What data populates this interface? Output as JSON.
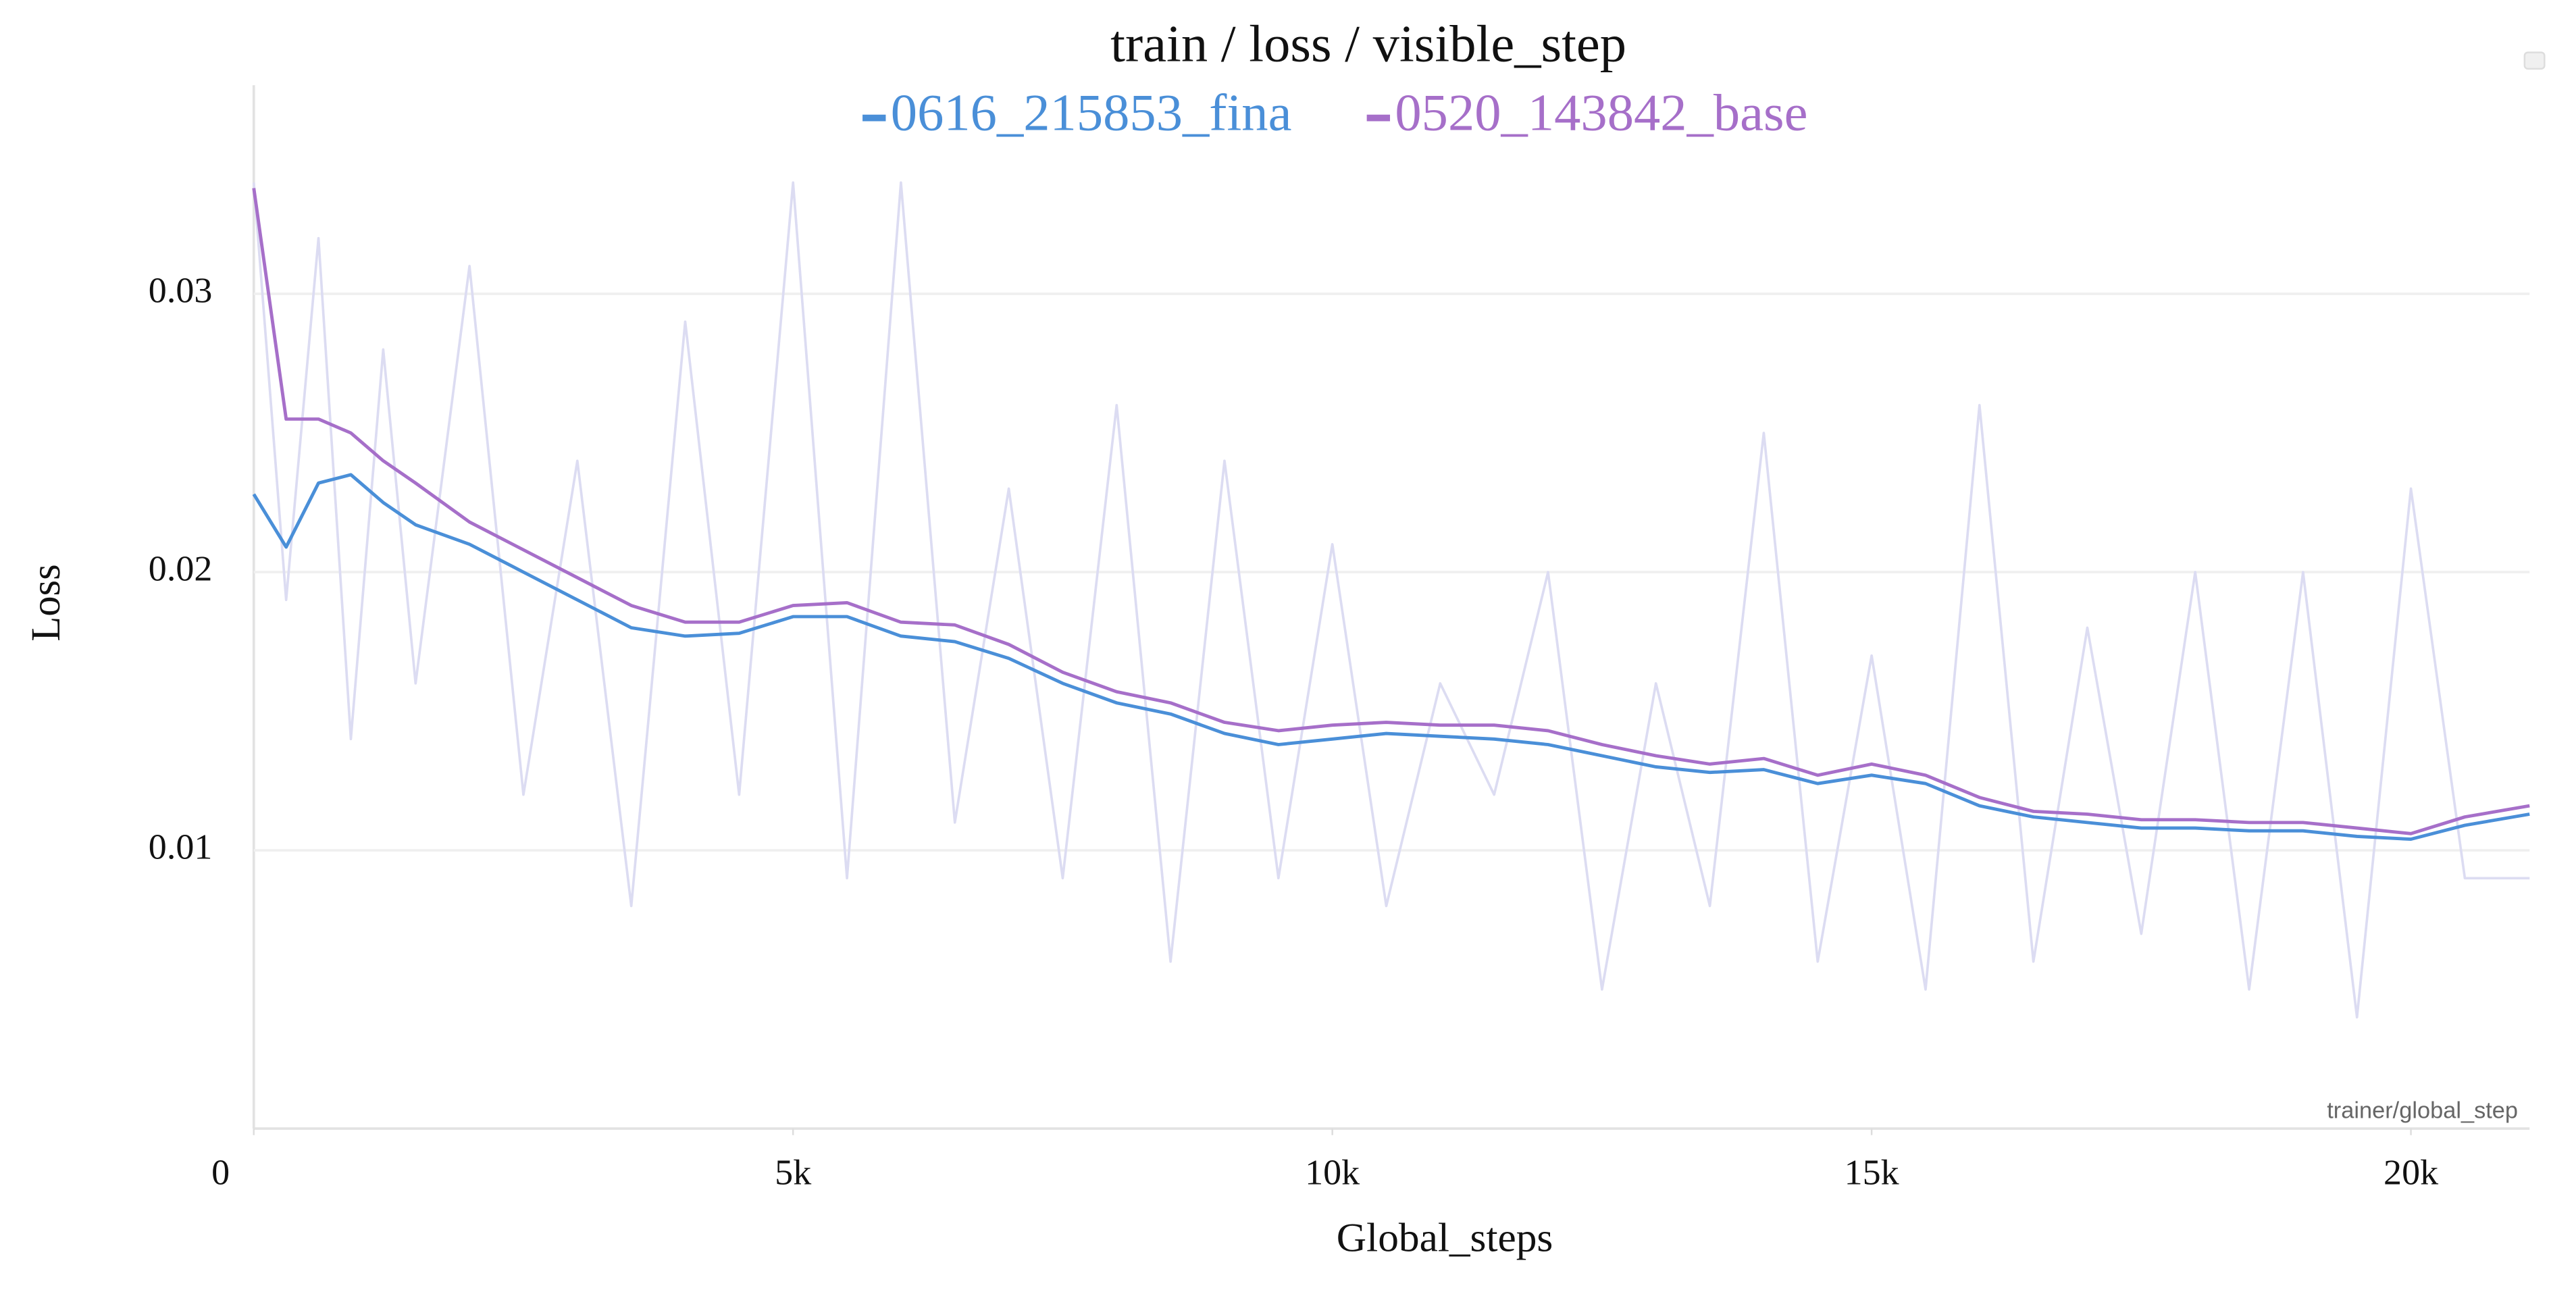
{
  "chart_data": {
    "type": "line",
    "title": "train / loss / visible_step",
    "x_label": "Global_steps",
    "y_label": "Loss",
    "x_axis_key": "trainer/global_step",
    "x": [
      0,
      300,
      600,
      900,
      1200,
      1500,
      2000,
      2500,
      3000,
      3500,
      4000,
      4500,
      5000,
      5500,
      6000,
      6500,
      7000,
      7500,
      8000,
      8500,
      9000,
      9500,
      10000,
      10500,
      11000,
      11500,
      12000,
      12500,
      13000,
      13500,
      14000,
      14500,
      15000,
      15500,
      16000,
      16500,
      17000,
      17500,
      18000,
      18500,
      19000,
      19500,
      20000,
      20500,
      21100
    ],
    "series": [
      {
        "color": "#dcdcf2",
        "values": [
          0.034,
          0.019,
          0.032,
          0.014,
          0.028,
          0.016,
          0.031,
          0.012,
          0.024,
          0.008,
          0.029,
          0.012,
          0.034,
          0.009,
          0.034,
          0.011,
          0.023,
          0.009,
          0.026,
          0.006,
          0.024,
          0.009,
          0.021,
          0.008,
          0.016,
          0.012,
          0.02,
          0.005,
          0.016,
          0.008,
          0.025,
          0.006,
          0.017,
          0.005,
          0.026,
          0.006,
          0.018,
          0.007,
          0.02,
          0.005,
          0.02,
          0.004,
          0.023,
          0.009,
          0.009
        ]
      },
      {
        "name": "0616_215853_fina",
        "color": "#4a8fd8",
        "values": [
          0.0228,
          0.0209,
          0.0232,
          0.0235,
          0.0225,
          0.0217,
          0.021,
          0.02,
          0.019,
          0.018,
          0.0177,
          0.0178,
          0.0184,
          0.0184,
          0.0177,
          0.0175,
          0.0169,
          0.016,
          0.0153,
          0.0149,
          0.0142,
          0.0138,
          0.014,
          0.0142,
          0.0141,
          0.014,
          0.0138,
          0.0134,
          0.013,
          0.0128,
          0.0129,
          0.0124,
          0.0127,
          0.0124,
          0.0116,
          0.0112,
          0.011,
          0.0108,
          0.0108,
          0.0107,
          0.0107,
          0.0105,
          0.0104,
          0.0109,
          0.0113
        ]
      },
      {
        "name": "0520_143842_base",
        "color": "#a66fc9",
        "values": [
          0.0338,
          0.0255,
          0.0255,
          0.025,
          0.024,
          0.0232,
          0.0218,
          0.0208,
          0.0198,
          0.0188,
          0.0182,
          0.0182,
          0.0188,
          0.0189,
          0.0182,
          0.0181,
          0.0174,
          0.0164,
          0.0157,
          0.0153,
          0.0146,
          0.0143,
          0.0145,
          0.0146,
          0.0145,
          0.0145,
          0.0143,
          0.0138,
          0.0134,
          0.0131,
          0.0133,
          0.0127,
          0.0131,
          0.0127,
          0.0119,
          0.0114,
          0.0113,
          0.0111,
          0.0111,
          0.011,
          0.011,
          0.0108,
          0.0106,
          0.0112,
          0.0116
        ]
      }
    ],
    "xlim": [
      0,
      21100
    ],
    "xticks": [
      0,
      {
        "value": 5000,
        "label": "5k"
      },
      {
        "value": 10000,
        "label": "10k"
      },
      {
        "value": 15000,
        "label": "15k"
      },
      {
        "value": 20000,
        "label": "20k"
      }
    ],
    "ylim": [
      0,
      0.0375
    ],
    "yticks": [
      0.01,
      0.02,
      0.03
    ],
    "grid": true
  }
}
